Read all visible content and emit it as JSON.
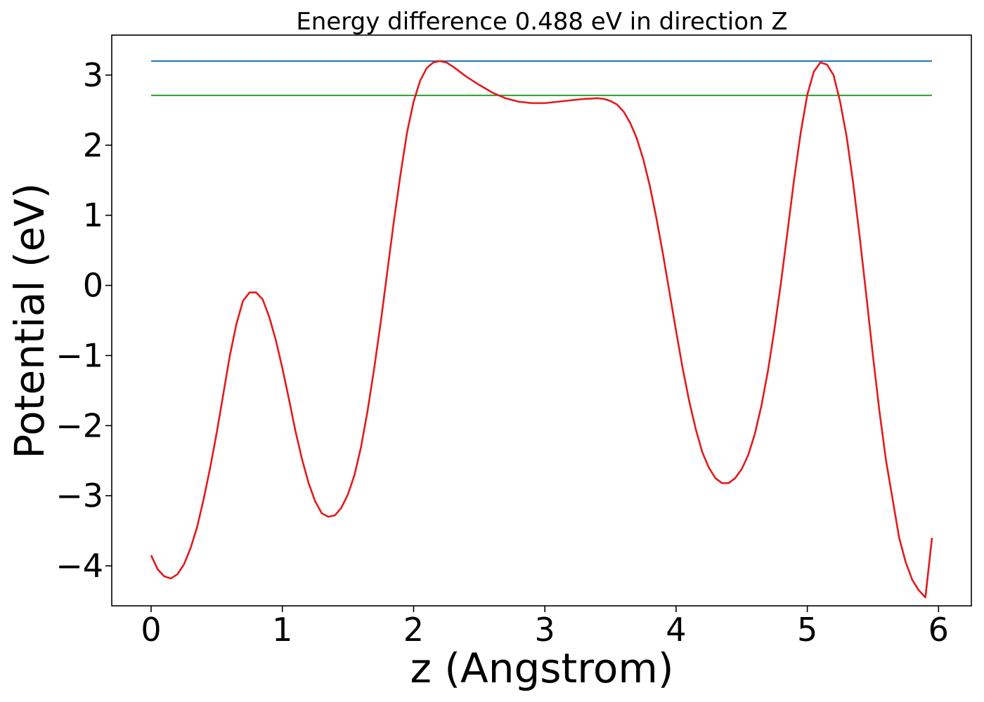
{
  "chart_data": {
    "type": "line",
    "title": "Energy difference 0.488 eV in direction Z",
    "xlabel": "z (Angstrom)",
    "ylabel": "Potential (eV)",
    "xlim": [
      -0.3,
      6.25
    ],
    "ylim": [
      -4.57,
      3.57
    ],
    "x_ticks": [
      0,
      1,
      2,
      3,
      4,
      5,
      6
    ],
    "x_tick_labels": [
      "0",
      "1",
      "2",
      "3",
      "4",
      "5",
      "6"
    ],
    "y_ticks": [
      -4,
      -3,
      -2,
      -1,
      0,
      1,
      2,
      3
    ],
    "y_tick_labels": [
      "−4",
      "−3",
      "−2",
      "−1",
      "0",
      "1",
      "2",
      "3"
    ],
    "grid": false,
    "legend": "none",
    "series": [
      {
        "color": "#1f77b4",
        "x": [
          0,
          5.95
        ],
        "y": [
          3.2,
          3.2
        ]
      },
      {
        "color": "#2ca02c",
        "x": [
          0,
          5.95
        ],
        "y": [
          2.71,
          2.71
        ]
      },
      {
        "color": "#e31a1c",
        "x": [
          0.0,
          0.05,
          0.1,
          0.15,
          0.2,
          0.25,
          0.3,
          0.35,
          0.4,
          0.45,
          0.5,
          0.55,
          0.6,
          0.65,
          0.7,
          0.75,
          0.8,
          0.85,
          0.9,
          0.95,
          1.0,
          1.05,
          1.1,
          1.15,
          1.2,
          1.25,
          1.3,
          1.35,
          1.4,
          1.45,
          1.5,
          1.55,
          1.6,
          1.65,
          1.7,
          1.75,
          1.8,
          1.85,
          1.9,
          1.95,
          2.0,
          2.05,
          2.1,
          2.15,
          2.2,
          2.25,
          2.3,
          2.35,
          2.4,
          2.5,
          2.6,
          2.7,
          2.8,
          2.9,
          3.0,
          3.1,
          3.2,
          3.3,
          3.4,
          3.45,
          3.5,
          3.55,
          3.6,
          3.65,
          3.7,
          3.75,
          3.8,
          3.85,
          3.9,
          3.95,
          4.0,
          4.05,
          4.1,
          4.15,
          4.2,
          4.25,
          4.3,
          4.35,
          4.4,
          4.45,
          4.5,
          4.55,
          4.6,
          4.65,
          4.7,
          4.75,
          4.8,
          4.85,
          4.9,
          4.95,
          5.0,
          5.05,
          5.1,
          5.15,
          5.2,
          5.25,
          5.3,
          5.35,
          5.4,
          5.45,
          5.5,
          5.55,
          5.6,
          5.65,
          5.7,
          5.75,
          5.8,
          5.85,
          5.9,
          5.95
        ],
        "y": [
          -3.85,
          -4.05,
          -4.15,
          -4.18,
          -4.12,
          -3.98,
          -3.75,
          -3.45,
          -3.05,
          -2.6,
          -2.1,
          -1.55,
          -1.0,
          -0.55,
          -0.22,
          -0.1,
          -0.1,
          -0.2,
          -0.45,
          -0.78,
          -1.18,
          -1.62,
          -2.08,
          -2.48,
          -2.82,
          -3.08,
          -3.25,
          -3.3,
          -3.28,
          -3.17,
          -2.98,
          -2.7,
          -2.3,
          -1.78,
          -1.18,
          -0.52,
          0.2,
          0.92,
          1.58,
          2.18,
          2.62,
          2.92,
          3.1,
          3.18,
          3.2,
          3.18,
          3.12,
          3.05,
          2.98,
          2.86,
          2.75,
          2.67,
          2.62,
          2.6,
          2.6,
          2.62,
          2.64,
          2.66,
          2.67,
          2.66,
          2.63,
          2.58,
          2.48,
          2.32,
          2.1,
          1.8,
          1.42,
          0.96,
          0.45,
          -0.1,
          -0.65,
          -1.18,
          -1.65,
          -2.05,
          -2.38,
          -2.6,
          -2.75,
          -2.82,
          -2.82,
          -2.75,
          -2.62,
          -2.42,
          -2.12,
          -1.72,
          -1.22,
          -0.62,
          0.05,
          0.78,
          1.52,
          2.18,
          2.72,
          3.05,
          3.18,
          3.15,
          3.0,
          2.62,
          2.12,
          1.45,
          0.68,
          -0.15,
          -1.0,
          -1.8,
          -2.5,
          -3.05,
          -3.6,
          -3.95,
          -4.2,
          -4.35,
          -4.45,
          -3.6
        ]
      }
    ]
  }
}
